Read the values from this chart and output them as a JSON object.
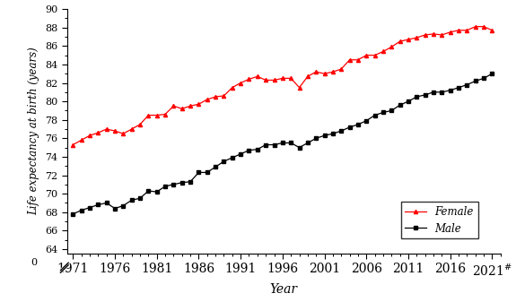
{
  "years": [
    1971,
    1972,
    1973,
    1974,
    1975,
    1976,
    1977,
    1978,
    1979,
    1980,
    1981,
    1982,
    1983,
    1984,
    1985,
    1986,
    1987,
    1988,
    1989,
    1990,
    1991,
    1992,
    1993,
    1994,
    1995,
    1996,
    1997,
    1998,
    1999,
    2000,
    2001,
    2002,
    2003,
    2004,
    2005,
    2006,
    2007,
    2008,
    2009,
    2010,
    2011,
    2012,
    2013,
    2014,
    2015,
    2016,
    2017,
    2018,
    2019,
    2020,
    2021
  ],
  "female": [
    75.3,
    75.8,
    76.3,
    76.6,
    77.0,
    76.8,
    76.5,
    77.0,
    77.5,
    78.5,
    78.5,
    78.6,
    79.5,
    79.2,
    79.5,
    79.7,
    80.2,
    80.5,
    80.6,
    81.5,
    82.0,
    82.4,
    82.7,
    82.3,
    82.3,
    82.5,
    82.5,
    81.5,
    82.7,
    83.2,
    83.0,
    83.2,
    83.5,
    84.5,
    84.5,
    85.0,
    85.0,
    85.4,
    85.9,
    86.5,
    86.7,
    86.9,
    87.2,
    87.3,
    87.2,
    87.5,
    87.7,
    87.7,
    88.1,
    88.1,
    87.7
  ],
  "male": [
    67.8,
    68.2,
    68.5,
    68.8,
    69.0,
    68.4,
    68.7,
    69.3,
    69.5,
    70.3,
    70.2,
    70.8,
    71.0,
    71.2,
    71.3,
    72.3,
    72.3,
    72.9,
    73.5,
    73.9,
    74.3,
    74.7,
    74.8,
    75.3,
    75.3,
    75.5,
    75.5,
    75.0,
    75.5,
    76.0,
    76.3,
    76.5,
    76.8,
    77.2,
    77.5,
    77.9,
    78.5,
    78.8,
    79.0,
    79.6,
    80.0,
    80.5,
    80.7,
    81.0,
    81.0,
    81.2,
    81.5,
    81.8,
    82.2,
    82.5,
    83.0
  ],
  "ylim_bottom": 63.5,
  "ylim_top": 90,
  "ytick_values": [
    64,
    66,
    68,
    70,
    72,
    74,
    76,
    78,
    80,
    82,
    84,
    86,
    88,
    90
  ],
  "xtick_values": [
    1971,
    1976,
    1981,
    1986,
    1991,
    1996,
    2001,
    2006,
    2011,
    2016,
    2021
  ],
  "xlabel": "Year",
  "ylabel": "Life expectancy at birth (years)",
  "female_color": "#ff0000",
  "male_color": "#000000",
  "legend_female": "Female",
  "legend_male": "Male",
  "marker_female": "^",
  "marker_male": "s",
  "title_fontsize": 9,
  "axis_fontsize": 9,
  "tick_fontsize": 8
}
